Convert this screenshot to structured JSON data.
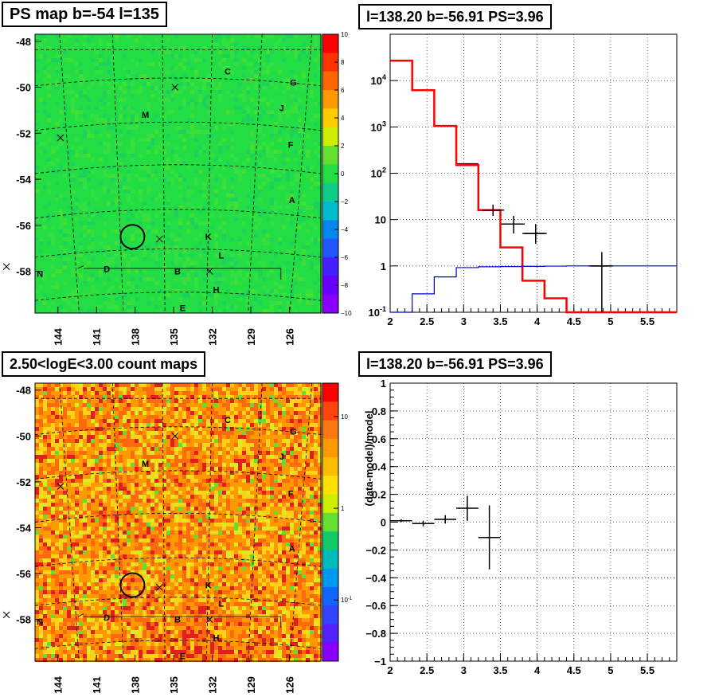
{
  "panels": {
    "top_left": {
      "title": "PS map b=-54 l=135"
    },
    "top_right": {
      "title": "l=138.20 b=-56.91 PS=3.96"
    },
    "bottom_left": {
      "title": "2.50<logE<3.00 count maps"
    },
    "bottom_right": {
      "title": "l=138.20 b=-56.91 PS=3.96"
    }
  },
  "chart_data": [
    {
      "type": "heatmap",
      "title": "PS map b=-54 l=135",
      "x_ticks": [
        "144",
        "141",
        "138",
        "135",
        "132",
        "129",
        "126"
      ],
      "y_ticks": [
        "-48",
        "-50",
        "-52",
        "-54",
        "-56",
        "-58"
      ],
      "colorbar_ticks": [
        "10",
        "8",
        "6",
        "4",
        "2",
        "0",
        "−2",
        "−4",
        "−6",
        "−8",
        "−10"
      ],
      "colorbar_range": [
        -10,
        10
      ],
      "base_color": "#22dd44",
      "markers": [
        {
          "label": "C",
          "l": 130.8,
          "b": -49.3
        },
        {
          "label": "G",
          "l": 125.7,
          "b": -49.8
        },
        {
          "label": "M",
          "l": 137.2,
          "b": -51.2
        },
        {
          "label": "J",
          "l": 126.6,
          "b": -50.9
        },
        {
          "label": "F",
          "l": 125.9,
          "b": -52.5
        },
        {
          "label": "A",
          "l": 125.8,
          "b": -54.9
        },
        {
          "label": "K",
          "l": 132.3,
          "b": -56.5
        },
        {
          "label": "L",
          "l": 131.3,
          "b": -57.3
        },
        {
          "label": "D",
          "l": 140.2,
          "b": -57.9
        },
        {
          "label": "B",
          "l": 134.7,
          "b": -58.0
        },
        {
          "label": "N",
          "l": 145.4,
          "b": -58.1
        },
        {
          "label": "H",
          "l": 131.7,
          "b": -58.8
        },
        {
          "label": "E",
          "l": 134.3,
          "b": -59.6
        }
      ],
      "crosses": [
        {
          "l": 134.9,
          "b": -50.0
        },
        {
          "l": 143.8,
          "b": -52.2
        },
        {
          "l": 136.1,
          "b": -56.6
        },
        {
          "l": 148.0,
          "b": -57.8
        },
        {
          "l": 132.2,
          "b": -58.0
        }
      ],
      "source_circle": {
        "l": 138.2,
        "b": -56.5
      }
    },
    {
      "type": "line",
      "title": "l=138.20 b=-56.91 PS=3.96",
      "xlim": [
        2.0,
        5.9
      ],
      "ylim": [
        0.1,
        100000
      ],
      "y_scale": "log",
      "x_ticks": [
        "2",
        "2.5",
        "3",
        "3.5",
        "4",
        "4.5",
        "5",
        "5.5"
      ],
      "y_ticks": [
        "10^{-1}",
        "1",
        "10",
        "10^{2}",
        "10^{3}",
        "10^{4}"
      ],
      "grid": true,
      "bin_edges": [
        2.0,
        2.3,
        2.6,
        2.9,
        3.2,
        3.5,
        3.8,
        4.1,
        4.4,
        4.7,
        5.0,
        5.3,
        5.6,
        5.9
      ],
      "series": [
        {
          "color": "#000000",
          "values": [
            27000,
            6200,
            1050,
            160,
            16,
            8,
            5,
            0,
            0,
            1,
            0,
            0,
            0
          ]
        },
        {
          "color": "#ff0000",
          "values": [
            27000,
            6200,
            1050,
            150,
            16,
            2.5,
            0.48,
            0.2,
            0.1,
            0.1,
            0.1,
            0.1,
            0.1
          ]
        },
        {
          "color": "#0000cc",
          "values": [
            0.1,
            0.25,
            0.58,
            0.92,
            0.96,
            0.97,
            0.98,
            0.99,
            1.0,
            1.0,
            1.0,
            1.0,
            1.0
          ]
        }
      ],
      "points": [
        {
          "x": 3.4,
          "xerr": 0.15,
          "y": 16,
          "ylo": 12,
          "yhi": 21
        },
        {
          "x": 3.68,
          "xerr": 0.15,
          "y": 8,
          "ylo": 5,
          "yhi": 12
        },
        {
          "x": 3.98,
          "xerr": 0.15,
          "y": 5,
          "ylo": 3,
          "yhi": 8
        },
        {
          "x": 4.88,
          "xerr": 0.15,
          "y": 1,
          "ylo": 0.1,
          "yhi": 2
        }
      ]
    },
    {
      "type": "heatmap",
      "title": "2.50<logE<3.00 count maps",
      "x_ticks": [
        "144",
        "141",
        "138",
        "135",
        "132",
        "129",
        "126"
      ],
      "y_ticks": [
        "-48",
        "-50",
        "-52",
        "-54",
        "-56",
        "-58"
      ],
      "colorbar_ticks": [
        "10",
        "1",
        "10^{-1}"
      ],
      "base_color": "#ff9900",
      "markers": [
        {
          "label": "C",
          "l": 130.8,
          "b": -49.3
        },
        {
          "label": "G",
          "l": 125.7,
          "b": -49.8
        },
        {
          "label": "M",
          "l": 137.2,
          "b": -51.2
        },
        {
          "label": "J",
          "l": 126.6,
          "b": -50.9
        },
        {
          "label": "F",
          "l": 125.9,
          "b": -52.5
        },
        {
          "label": "A",
          "l": 125.8,
          "b": -54.9
        },
        {
          "label": "K",
          "l": 132.3,
          "b": -56.5
        },
        {
          "label": "L",
          "l": 131.3,
          "b": -57.3
        },
        {
          "label": "D",
          "l": 140.2,
          "b": -57.9
        },
        {
          "label": "B",
          "l": 134.7,
          "b": -58.0
        },
        {
          "label": "N",
          "l": 145.4,
          "b": -58.1
        },
        {
          "label": "H",
          "l": 131.7,
          "b": -58.8
        },
        {
          "label": "E",
          "l": 134.3,
          "b": -59.6
        }
      ],
      "crosses": [
        {
          "l": 134.9,
          "b": -50.0
        },
        {
          "l": 143.8,
          "b": -52.2
        },
        {
          "l": 136.1,
          "b": -56.6
        },
        {
          "l": 148.0,
          "b": -57.8
        },
        {
          "l": 132.2,
          "b": -58.0
        }
      ],
      "source_circle": {
        "l": 138.2,
        "b": -56.5
      }
    },
    {
      "type": "scatter",
      "title": "l=138.20 b=-56.91 PS=3.96",
      "ylabel": "(data-model)/model",
      "xlim": [
        2.0,
        5.9
      ],
      "ylim": [
        -1.0,
        1.0
      ],
      "x_ticks": [
        "2",
        "2.5",
        "3",
        "3.5",
        "4",
        "4.5",
        "5",
        "5.5"
      ],
      "y_ticks": [
        "−1",
        "−0.8",
        "−0.6",
        "−0.4",
        "−0.2",
        "0",
        "0.2",
        "0.4",
        "0.6",
        "0.8",
        "1"
      ],
      "grid": true,
      "points": [
        {
          "x": 2.15,
          "xerr": 0.15,
          "y": 0.01,
          "yerr": 0.01
        },
        {
          "x": 2.45,
          "xerr": 0.15,
          "y": -0.01,
          "yerr": 0.02
        },
        {
          "x": 2.75,
          "xerr": 0.15,
          "y": 0.02,
          "yerr": 0.03
        },
        {
          "x": 3.05,
          "xerr": 0.15,
          "y": 0.1,
          "yerr": 0.09
        },
        {
          "x": 3.35,
          "xerr": 0.15,
          "y": -0.11,
          "yerr": 0.23
        }
      ]
    }
  ]
}
